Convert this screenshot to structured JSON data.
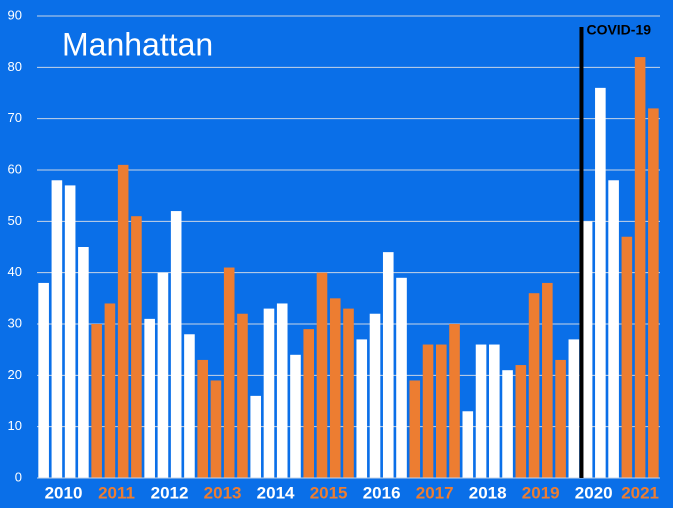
{
  "chart_data": {
    "type": "bar",
    "title": "Manhattan",
    "annotation": "COVID-19",
    "groups": [
      {
        "label": "2010",
        "color": "#ffffff",
        "values": [
          38,
          58,
          57,
          45
        ]
      },
      {
        "label": "2011",
        "color": "#ed7d31",
        "values": [
          30,
          34,
          61,
          51
        ]
      },
      {
        "label": "2012",
        "color": "#ffffff",
        "values": [
          31,
          40,
          52,
          28
        ]
      },
      {
        "label": "2013",
        "color": "#ed7d31",
        "values": [
          23,
          19,
          41,
          32
        ]
      },
      {
        "label": "2014",
        "color": "#ffffff",
        "values": [
          16,
          33,
          34,
          24
        ]
      },
      {
        "label": "2015",
        "color": "#ed7d31",
        "values": [
          29,
          40,
          35,
          33
        ]
      },
      {
        "label": "2016",
        "color": "#ffffff",
        "values": [
          27,
          32,
          44,
          39
        ]
      },
      {
        "label": "2017",
        "color": "#ed7d31",
        "values": [
          19,
          26,
          26,
          30
        ]
      },
      {
        "label": "2018",
        "color": "#ffffff",
        "values": [
          13,
          26,
          26,
          21
        ]
      },
      {
        "label": "2019",
        "color": "#ed7d31",
        "values": [
          22,
          36,
          38,
          23
        ]
      },
      {
        "label": "2020",
        "color": "#ffffff",
        "values": [
          27,
          50,
          76,
          58
        ]
      },
      {
        "label": "2021",
        "color": "#ed7d31",
        "values": [
          47,
          82,
          72
        ]
      }
    ],
    "ylim": [
      0,
      90
    ],
    "yticks": [
      0,
      10,
      20,
      30,
      40,
      50,
      60,
      70,
      80,
      90
    ],
    "grid": true
  }
}
